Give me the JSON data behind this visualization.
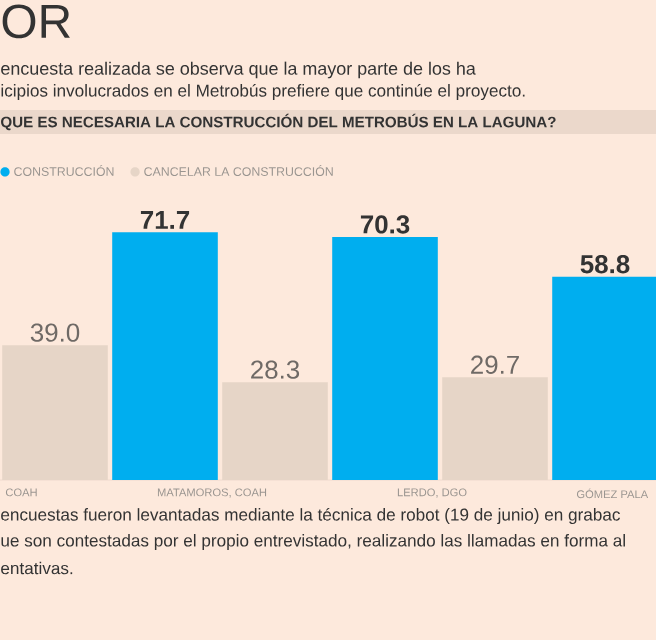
{
  "chart_data": {
    "type": "bar",
    "title": "OR",
    "subtitle": "encuesta realizada se observa que la mayor parte de los ha",
    "categories": [
      "COAH",
      "MATAMOROS, COAH",
      "LERDO, DGO",
      "GÓMEZ PALA"
    ],
    "series": [
      {
        "name": "CONSTRUCCIÓN",
        "color": "#00aeef",
        "values": [
          null,
          71.7,
          70.3,
          58.8
        ],
        "value_labels": [
          null,
          "71.7",
          "70.3",
          "58.8"
        ]
      },
      {
        "name": "CANCELAR LA CONSTRUCCIÓN",
        "color": "#e6d5c7",
        "values": [
          39.0,
          28.3,
          29.7,
          null
        ],
        "value_labels": [
          "39.0",
          "28.3",
          "29.7",
          null
        ]
      }
    ],
    "legend": "top left",
    "annotations": [
      "icipios involucrados en el Metrobús prefiere que continúe el proyecto.",
      "QUE ES NECESARIA LA CONSTRUCCIÓN DEL METROBÚS EN LA LAGUNA?",
      "encuestas fueron levantadas mediante la técnica de robot (19 de junio) en grabac",
      "ue son contestadas por el propio entrevistado, realizando las llamadas en forma al",
      "entativas."
    ]
  }
}
